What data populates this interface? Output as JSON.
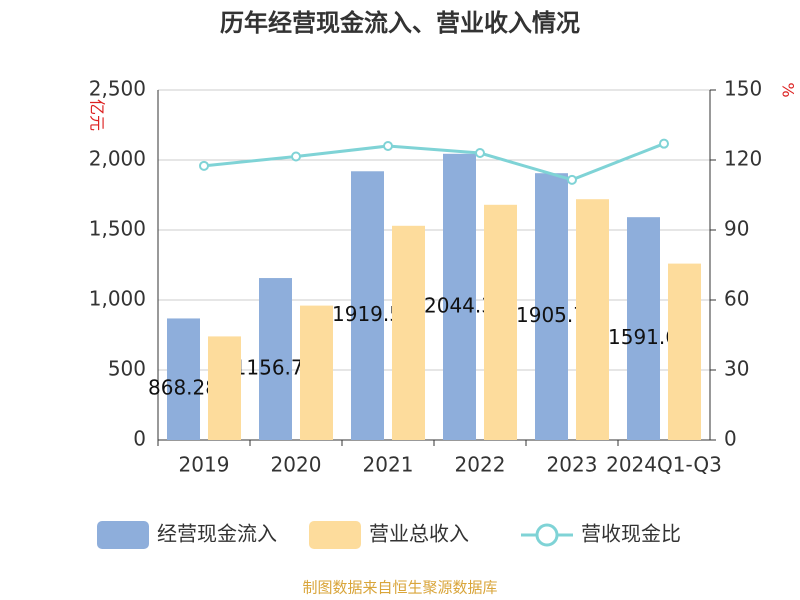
{
  "chart_data": {
    "type": "bar-line",
    "title": "历年经营现金流入、营业收入情况",
    "y_label": "亿元",
    "y2_label": "%",
    "categories": [
      "2019",
      "2020",
      "2021",
      "2022",
      "2023",
      "2024Q1-Q3"
    ],
    "series": [
      {
        "name": "经营现金流入",
        "color": "#8eaedb",
        "type": "bar",
        "values": [
          868.28,
          1156.79,
          1919.5,
          2044.3,
          1905.7,
          1591.6
        ]
      },
      {
        "name": "营业总收入",
        "color": "#fddc9c",
        "type": "bar",
        "values": [
          740,
          960,
          1530,
          1680,
          1720,
          1260
        ]
      },
      {
        "name": "营收现金比",
        "color": "#7fd3d6",
        "type": "line",
        "axis": "y2",
        "values": [
          117.5,
          121.5,
          126,
          123,
          111.5,
          127
        ]
      }
    ],
    "ylim": [
      0,
      2500
    ],
    "yticks": [
      0,
      500,
      {
        "value": 1000,
        "label": "1,000"
      },
      {
        "value": 1500,
        "label": "1,500"
      },
      {
        "value": 2000,
        "label": "2,000"
      },
      {
        "value": 2500,
        "label": "2,500"
      }
    ],
    "y2lim": [
      0,
      150
    ],
    "y2ticks": [
      0,
      30,
      60,
      90,
      120,
      150
    ],
    "grid": true,
    "legend": "bottom",
    "source": "制图数据来自恒生聚源数据库"
  }
}
